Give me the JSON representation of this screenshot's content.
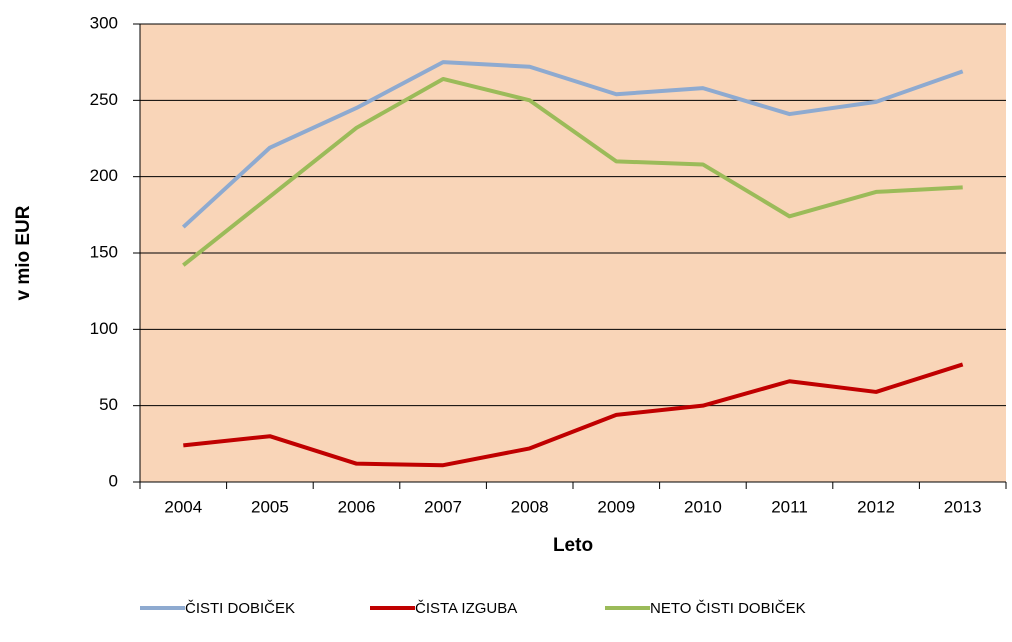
{
  "chart_data": {
    "type": "line",
    "xlabel": "Leto",
    "ylabel": "v mio EUR",
    "categories": [
      "2004",
      "2005",
      "2006",
      "2007",
      "2008",
      "2009",
      "2010",
      "2011",
      "2012",
      "2013"
    ],
    "series": [
      {
        "name": "ČISTI DOBIČEK",
        "color": "#8eaad0",
        "values": [
          167,
          219,
          245,
          275,
          272,
          254,
          258,
          241,
          249,
          269
        ]
      },
      {
        "name": "ČISTA IZGUBA",
        "color": "#c00000",
        "values": [
          24,
          30,
          12,
          11,
          22,
          44,
          50,
          66,
          59,
          77
        ]
      },
      {
        "name": "NETO ČISTI DOBIČEK",
        "color": "#9bbb59",
        "values": [
          142,
          187,
          232,
          264,
          250,
          210,
          208,
          174,
          190,
          193
        ]
      }
    ],
    "ylim": [
      0,
      300
    ],
    "yticks": [
      0,
      50,
      100,
      150,
      200,
      250,
      300
    ],
    "grid": true,
    "background": "#f9d5b8",
    "legend": "bottom"
  }
}
